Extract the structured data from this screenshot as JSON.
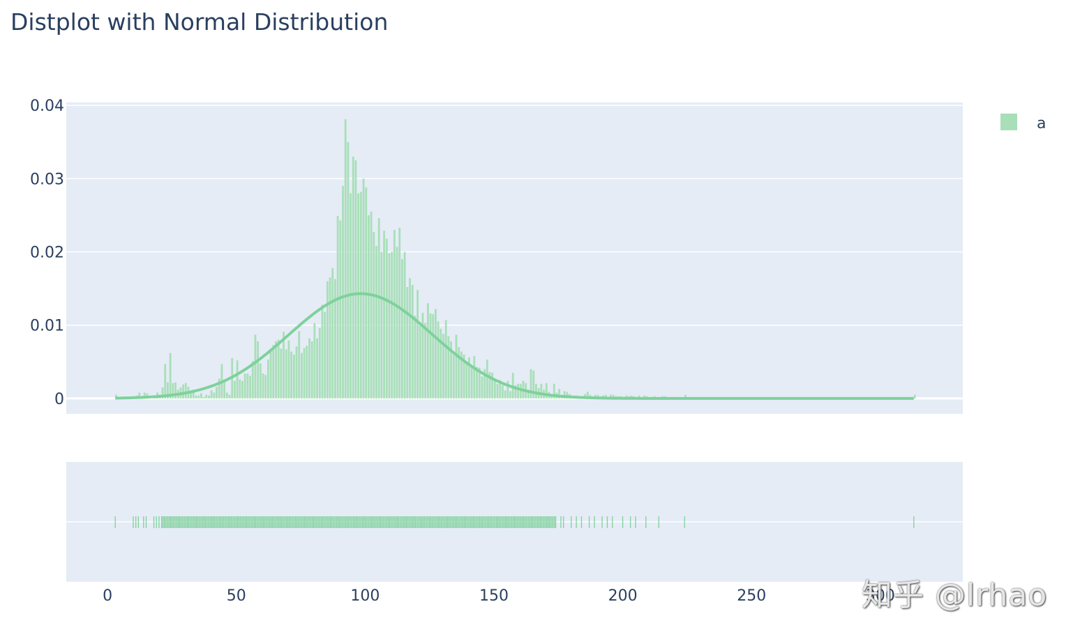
{
  "watermark": "知乎 @lrhao",
  "colors": {
    "accent": "#7fd19b",
    "accent_fill": "#a8dfb8",
    "plot_bg": "#e5ecf6",
    "grid": "#ffffff",
    "text": "#2a3f5f"
  },
  "chart_data": {
    "type": "bar",
    "title": "Distplot with Normal Distribution",
    "xlabel": "",
    "ylabel": "",
    "xlim": [
      -16,
      332
    ],
    "ylim": [
      -0.0021,
      0.0404
    ],
    "x_ticks": [
      0,
      50,
      100,
      150,
      200,
      250,
      300
    ],
    "x_tick_labels": [
      "0",
      "50",
      "100",
      "150",
      "200",
      "250",
      "300"
    ],
    "y_ticks": [
      0,
      0.01,
      0.02,
      0.03,
      0.04
    ],
    "y_tick_labels": [
      "0",
      "0.01",
      "0.02",
      "0.03",
      "0.04"
    ],
    "grid": true,
    "legend": {
      "position": "top-right",
      "entries": [
        "a"
      ]
    },
    "histogram": {
      "name": "a",
      "bin_width": 1,
      "bins": [
        [
          3,
          0.0005
        ],
        [
          10,
          0.0003
        ],
        [
          11,
          0.0004
        ],
        [
          12,
          0.0008
        ],
        [
          14,
          0.0008
        ],
        [
          15,
          0.0007
        ],
        [
          18,
          0.0003
        ],
        [
          19,
          0.0008
        ],
        [
          20,
          0.0005
        ],
        [
          21,
          0.0015
        ],
        [
          22,
          0.0047
        ],
        [
          23,
          0.0022
        ],
        [
          24,
          0.0062
        ],
        [
          25,
          0.0021
        ],
        [
          26,
          0.0022
        ],
        [
          27,
          0.0012
        ],
        [
          28,
          0.0015
        ],
        [
          29,
          0.0019
        ],
        [
          30,
          0.0021
        ],
        [
          31,
          0.0016
        ],
        [
          32,
          0.0011
        ],
        [
          33,
          0.0012
        ],
        [
          34,
          0.0004
        ],
        [
          35,
          0.0004
        ],
        [
          36,
          0.0007
        ],
        [
          37,
          0.0002
        ],
        [
          38,
          0.0005
        ],
        [
          39,
          0.0004
        ],
        [
          40,
          0.0011
        ],
        [
          41,
          0.0008
        ],
        [
          42,
          0.0016
        ],
        [
          43,
          0.0027
        ],
        [
          44,
          0.0047
        ],
        [
          45,
          0.0022
        ],
        [
          46,
          0.0008
        ],
        [
          47,
          0.0005
        ],
        [
          48,
          0.0055
        ],
        [
          49,
          0.0024
        ],
        [
          50,
          0.0052
        ],
        [
          51,
          0.0026
        ],
        [
          52,
          0.0024
        ],
        [
          53,
          0.0034
        ],
        [
          54,
          0.0034
        ],
        [
          55,
          0.0031
        ],
        [
          56,
          0.0051
        ],
        [
          57,
          0.0087
        ],
        [
          58,
          0.0078
        ],
        [
          59,
          0.0048
        ],
        [
          60,
          0.0034
        ],
        [
          61,
          0.0032
        ],
        [
          62,
          0.0053
        ],
        [
          63,
          0.0067
        ],
        [
          64,
          0.0073
        ],
        [
          65,
          0.0078
        ],
        [
          66,
          0.008
        ],
        [
          67,
          0.0068
        ],
        [
          68,
          0.0091
        ],
        [
          69,
          0.0067
        ],
        [
          70,
          0.0079
        ],
        [
          71,
          0.0064
        ],
        [
          72,
          0.006
        ],
        [
          73,
          0.0071
        ],
        [
          74,
          0.0092
        ],
        [
          75,
          0.0062
        ],
        [
          76,
          0.0069
        ],
        [
          77,
          0.0072
        ],
        [
          78,
          0.0082
        ],
        [
          79,
          0.0078
        ],
        [
          80,
          0.0103
        ],
        [
          81,
          0.0082
        ],
        [
          82,
          0.0096
        ],
        [
          83,
          0.0128
        ],
        [
          84,
          0.0118
        ],
        [
          85,
          0.016
        ],
        [
          86,
          0.0165
        ],
        [
          87,
          0.0178
        ],
        [
          88,
          0.0163
        ],
        [
          89,
          0.0249
        ],
        [
          90,
          0.0243
        ],
        [
          91,
          0.029
        ],
        [
          92,
          0.0381
        ],
        [
          93,
          0.035
        ],
        [
          94,
          0.028
        ],
        [
          95,
          0.033
        ],
        [
          96,
          0.0325
        ],
        [
          97,
          0.028
        ],
        [
          98,
          0.0282
        ],
        [
          99,
          0.03
        ],
        [
          100,
          0.0288
        ],
        [
          101,
          0.025
        ],
        [
          102,
          0.0255
        ],
        [
          103,
          0.0227
        ],
        [
          104,
          0.0208
        ],
        [
          105,
          0.0246
        ],
        [
          106,
          0.02
        ],
        [
          107,
          0.0229
        ],
        [
          108,
          0.0218
        ],
        [
          109,
          0.0198
        ],
        [
          110,
          0.02
        ],
        [
          111,
          0.023
        ],
        [
          112,
          0.0207
        ],
        [
          113,
          0.0233
        ],
        [
          114,
          0.019
        ],
        [
          115,
          0.02
        ],
        [
          116,
          0.0152
        ],
        [
          117,
          0.0164
        ],
        [
          118,
          0.0155
        ],
        [
          119,
          0.0113
        ],
        [
          120,
          0.0148
        ],
        [
          121,
          0.01
        ],
        [
          122,
          0.0117
        ],
        [
          123,
          0.0103
        ],
        [
          124,
          0.013
        ],
        [
          125,
          0.0116
        ],
        [
          126,
          0.0115
        ],
        [
          127,
          0.0122
        ],
        [
          128,
          0.0105
        ],
        [
          129,
          0.0095
        ],
        [
          130,
          0.0088
        ],
        [
          131,
          0.0107
        ],
        [
          132,
          0.0085
        ],
        [
          133,
          0.0078
        ],
        [
          134,
          0.006
        ],
        [
          135,
          0.0087
        ],
        [
          136,
          0.007
        ],
        [
          137,
          0.0064
        ],
        [
          138,
          0.006
        ],
        [
          139,
          0.005
        ],
        [
          140,
          0.0056
        ],
        [
          141,
          0.0045
        ],
        [
          142,
          0.0058
        ],
        [
          143,
          0.0043
        ],
        [
          144,
          0.0042
        ],
        [
          145,
          0.003
        ],
        [
          146,
          0.004
        ],
        [
          147,
          0.0053
        ],
        [
          148,
          0.0036
        ],
        [
          149,
          0.0035
        ],
        [
          150,
          0.0025
        ],
        [
          151,
          0.002
        ],
        [
          152,
          0.0025
        ],
        [
          153,
          0.0018
        ],
        [
          154,
          0.0011
        ],
        [
          155,
          0.0024
        ],
        [
          156,
          0.001
        ],
        [
          157,
          0.0035
        ],
        [
          158,
          0.0018
        ],
        [
          159,
          0.002
        ],
        [
          160,
          0.002
        ],
        [
          161,
          0.0024
        ],
        [
          162,
          0.0021
        ],
        [
          163,
          0.0012
        ],
        [
          164,
          0.004
        ],
        [
          165,
          0.0038
        ],
        [
          166,
          0.002
        ],
        [
          167,
          0.0014
        ],
        [
          168,
          0.002
        ],
        [
          169,
          0.0012
        ],
        [
          170,
          0.0021
        ],
        [
          171,
          0.0009
        ],
        [
          172,
          0.0006
        ],
        [
          173,
          0.002
        ],
        [
          174,
          0.0008
        ],
        [
          175,
          0.0013
        ],
        [
          176,
          0.0005
        ],
        [
          177,
          0.001
        ],
        [
          178,
          0.0009
        ],
        [
          179,
          0.0006
        ],
        [
          180,
          0.0004
        ],
        [
          181,
          0.0004
        ],
        [
          182,
          0.0004
        ],
        [
          183,
          0.0003
        ],
        [
          184,
          0.0003
        ],
        [
          185,
          0.0006
        ],
        [
          186,
          0.0009
        ],
        [
          187,
          0.0005
        ],
        [
          188,
          0.0003
        ],
        [
          189,
          0.0005
        ],
        [
          190,
          0.0005
        ],
        [
          191,
          0.0003
        ],
        [
          192,
          0.0004
        ],
        [
          193,
          0.0005
        ],
        [
          195,
          0.0005
        ],
        [
          196,
          0.0005
        ],
        [
          197,
          0.0003
        ],
        [
          198,
          0.0003
        ],
        [
          199,
          0.0003
        ],
        [
          201,
          0.0004
        ],
        [
          202,
          0.0003
        ],
        [
          203,
          0.0004
        ],
        [
          204,
          0.0003
        ],
        [
          206,
          0.0004
        ],
        [
          208,
          0.0004
        ],
        [
          209,
          0.0003
        ],
        [
          212,
          0.0003
        ],
        [
          215,
          0.0003
        ],
        [
          216,
          0.0003
        ],
        [
          224,
          0.0005
        ],
        [
          313,
          0.0005
        ]
      ]
    },
    "normal_curve": {
      "name": "a",
      "mean": 98.3,
      "std": 28,
      "x_range": [
        3,
        313
      ],
      "peak_density": 0.0143
    },
    "rug": {
      "name": "a",
      "range_dense": [
        21,
        174
      ],
      "values_sparse": [
        3,
        10,
        11,
        12,
        14,
        15,
        18,
        19,
        20,
        176,
        177,
        180,
        182,
        184,
        187,
        189,
        192,
        194,
        196,
        200,
        203,
        205,
        209,
        214,
        224,
        313
      ]
    }
  }
}
